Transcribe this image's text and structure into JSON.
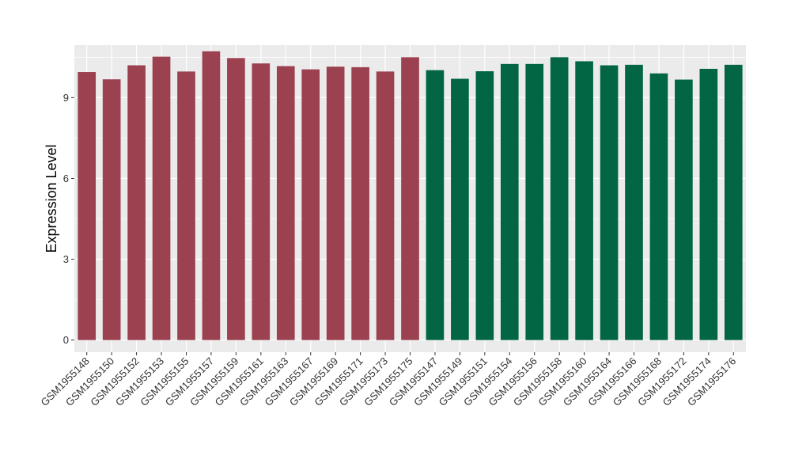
{
  "chart_data": {
    "type": "bar",
    "xlabel": "",
    "ylabel": "Expression Level",
    "ylim": [
      -0.45,
      10.95
    ],
    "yticks": [
      0,
      3,
      6,
      9
    ],
    "grid": true,
    "legend": "none",
    "categories": [
      "GSM1955148",
      "GSM1955150",
      "GSM1955152",
      "GSM1955153",
      "GSM1955155",
      "GSM1955157",
      "GSM1955159",
      "GSM1955161",
      "GSM1955163",
      "GSM1955167",
      "GSM1955169",
      "GSM1955171",
      "GSM1955173",
      "GSM1955175",
      "GSM1955147",
      "GSM1955149",
      "GSM1955151",
      "GSM1955154",
      "GSM1955156",
      "GSM1955158",
      "GSM1955160",
      "GSM1955164",
      "GSM1955166",
      "GSM1955168",
      "GSM1955172",
      "GSM1955174",
      "GSM1955176"
    ],
    "values": [
      9.95,
      9.68,
      10.2,
      10.52,
      9.97,
      10.72,
      10.47,
      10.27,
      10.17,
      10.05,
      10.15,
      10.13,
      9.97,
      10.5,
      10.02,
      9.7,
      9.98,
      10.25,
      10.25,
      10.5,
      10.35,
      10.2,
      10.22,
      9.9,
      9.67,
      10.07,
      10.22
    ],
    "colors": [
      "#9B4150",
      "#9B4150",
      "#9B4150",
      "#9B4150",
      "#9B4150",
      "#9B4150",
      "#9B4150",
      "#9B4150",
      "#9B4150",
      "#9B4150",
      "#9B4150",
      "#9B4150",
      "#9B4150",
      "#9B4150",
      "#026644",
      "#026644",
      "#026644",
      "#026644",
      "#026644",
      "#026644",
      "#026644",
      "#026644",
      "#026644",
      "#026644",
      "#026644",
      "#026644",
      "#026644"
    ],
    "panel_background": "#EBEBEB",
    "grid_color": "#FFFFFF"
  }
}
